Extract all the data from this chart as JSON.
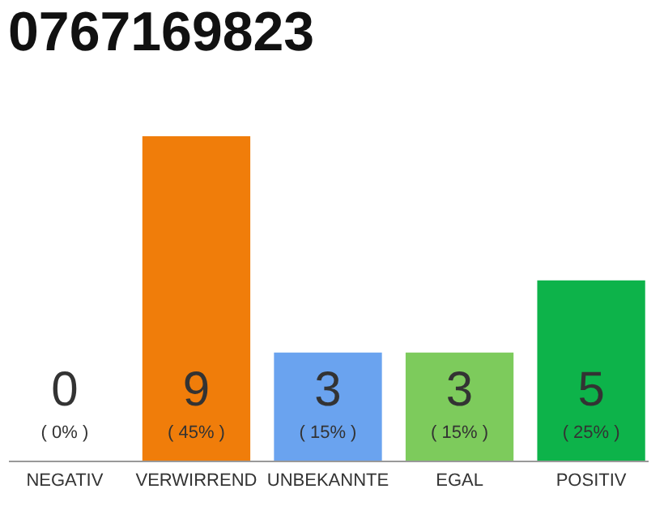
{
  "chart_data": {
    "type": "bar",
    "title": "0767169823",
    "categories": [
      "NEGATIV",
      "VERWIRREND",
      "UNBEKANNTE",
      "EGAL",
      "POSITIV"
    ],
    "values": [
      0,
      45,
      15,
      15,
      25
    ],
    "colors": [
      "#bbbbbb",
      "#f07d0a",
      "#6aa3ef",
      "#7dcb5c",
      "#0db34a"
    ],
    "value_labels": [
      "( 0% )",
      "( 45% )",
      "( 15% )",
      "( 15% )",
      "( 25% )"
    ],
    "annotations": [
      "0",
      "9",
      "3",
      "3",
      "5"
    ],
    "tick_labels": "x"
  }
}
